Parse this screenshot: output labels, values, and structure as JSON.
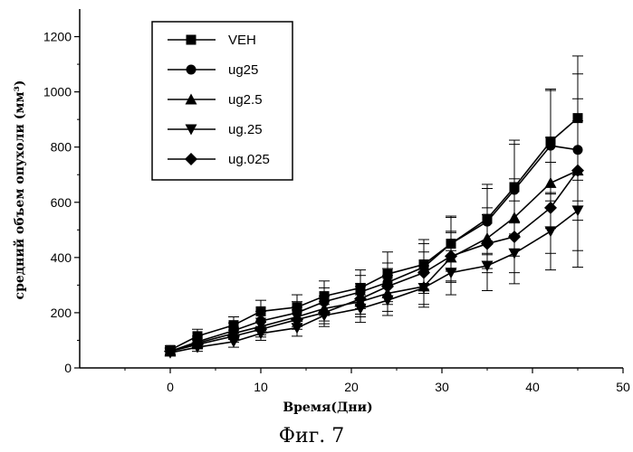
{
  "chart_data": {
    "type": "line",
    "title": "",
    "xlabel": "Время(Дни)",
    "ylabel": "средний объем опухоли (мм³)",
    "xlim": [
      -10,
      50
    ],
    "ylim": [
      0,
      1300
    ],
    "xticks": [
      0,
      10,
      20,
      30,
      40,
      50
    ],
    "yticks": [
      0,
      200,
      400,
      600,
      800,
      1000,
      1200
    ],
    "grid": false,
    "legend_position": "top-left",
    "x": [
      0,
      3,
      7,
      10,
      14,
      17,
      21,
      24,
      28,
      31,
      35,
      38,
      42,
      45
    ],
    "series": [
      {
        "name": "VEH",
        "marker": "square",
        "values": [
          65,
          115,
          155,
          205,
          220,
          260,
          290,
          340,
          375,
          450,
          540,
          655,
          820,
          905
        ],
        "errors": [
          15,
          25,
          30,
          40,
          45,
          55,
          65,
          80,
          90,
          100,
          125,
          170,
          190,
          225
        ]
      },
      {
        "name": "ug25",
        "marker": "circle",
        "values": [
          60,
          95,
          135,
          170,
          200,
          240,
          275,
          310,
          365,
          450,
          530,
          645,
          805,
          790
        ],
        "errors": [
          15,
          20,
          28,
          35,
          40,
          50,
          60,
          70,
          85,
          95,
          120,
          165,
          200,
          185
        ]
      },
      {
        "name": "ug2.5",
        "marker": "triangle-up",
        "values": [
          60,
          90,
          125,
          150,
          185,
          215,
          240,
          270,
          295,
          400,
          470,
          545,
          670,
          715
        ],
        "errors": [
          12,
          18,
          22,
          30,
          35,
          45,
          55,
          65,
          75,
          90,
          110,
          140,
          165,
          180
        ]
      },
      {
        "name": "ug.25",
        "marker": "triangle-down",
        "values": [
          55,
          75,
          95,
          125,
          145,
          190,
          215,
          245,
          290,
          345,
          370,
          415,
          495,
          570
        ],
        "errors": [
          12,
          15,
          20,
          25,
          30,
          40,
          50,
          55,
          60,
          80,
          90,
          110,
          140,
          145
        ]
      },
      {
        "name": "ug.025",
        "marker": "diamond",
        "values": [
          60,
          85,
          115,
          140,
          175,
          200,
          250,
          295,
          345,
          405,
          450,
          475,
          580,
          715
        ],
        "errors": [
          12,
          16,
          22,
          28,
          35,
          40,
          55,
          65,
          75,
          90,
          105,
          130,
          165,
          350
        ]
      }
    ]
  },
  "caption": "Фиг. 7"
}
